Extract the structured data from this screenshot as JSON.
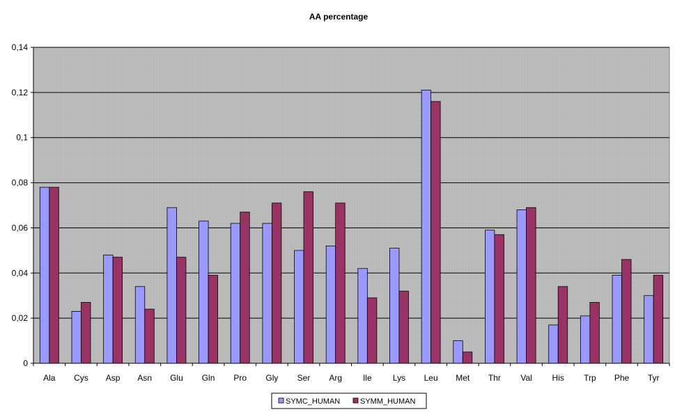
{
  "chart_data": {
    "type": "bar",
    "title": "AA percentage",
    "xlabel": "",
    "ylabel": "",
    "categories": [
      "Ala",
      "Cys",
      "Asp",
      "Asn",
      "Glu",
      "Gln",
      "Pro",
      "Gly",
      "Ser",
      "Arg",
      "Ile",
      "Lys",
      "Leu",
      "Met",
      "Thr",
      "Val",
      "His",
      "Trp",
      "Phe",
      "Tyr"
    ],
    "series": [
      {
        "name": "SYMC_HUMAN",
        "color": "#9999ff",
        "values": [
          0.078,
          0.023,
          0.048,
          0.034,
          0.069,
          0.063,
          0.062,
          0.062,
          0.05,
          0.052,
          0.042,
          0.051,
          0.121,
          0.01,
          0.059,
          0.068,
          0.017,
          0.021,
          0.039,
          0.03
        ]
      },
      {
        "name": "SYMM_HUMAN",
        "color": "#993366",
        "values": [
          0.078,
          0.027,
          0.047,
          0.024,
          0.047,
          0.039,
          0.067,
          0.071,
          0.076,
          0.071,
          0.029,
          0.032,
          0.116,
          0.005,
          0.057,
          0.069,
          0.034,
          0.027,
          0.046,
          0.039
        ]
      }
    ],
    "ylim": [
      0,
      0.14
    ],
    "yticks": [
      0,
      0.02,
      0.04,
      0.06,
      0.08,
      0.1,
      0.12,
      0.14
    ],
    "ytick_labels": [
      "0",
      "0,02",
      "0,04",
      "0,06",
      "0,08",
      "0,1",
      "0,12",
      "0,14"
    ],
    "grid": true,
    "plot_background": "#c0c0c0",
    "legend_position": "bottom-center"
  }
}
